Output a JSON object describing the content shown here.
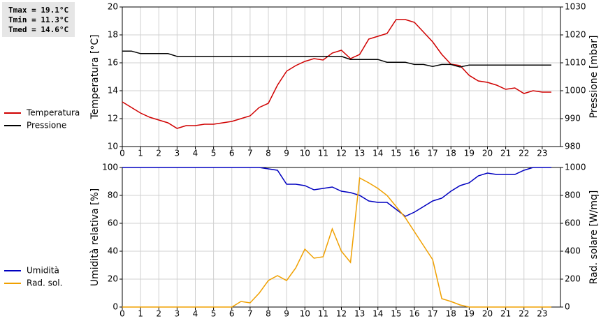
{
  "chart_data": [
    {
      "type": "line",
      "annotations": [
        "Tmax = 19.1°C",
        "Tmin = 11.3°C",
        "Tmed = 14.6°C"
      ],
      "y_label": "Temperatura [°C]",
      "y2_label": "Pressione [mbar]",
      "x": [
        0,
        0.5,
        1,
        1.5,
        2,
        2.5,
        3,
        3.5,
        4,
        4.5,
        5,
        5.5,
        6,
        6.5,
        7,
        7.5,
        8,
        8.5,
        9,
        9.5,
        10,
        10.5,
        11,
        11.5,
        12,
        12.5,
        13,
        13.5,
        14,
        14.5,
        15,
        15.5,
        16,
        16.5,
        17,
        17.5,
        18,
        18.5,
        19,
        19.5,
        20,
        20.5,
        21,
        21.5,
        22,
        22.5,
        23,
        23.5
      ],
      "xlim": [
        0,
        24
      ],
      "xticks": [
        0,
        1,
        2,
        3,
        4,
        5,
        6,
        7,
        8,
        9,
        10,
        11,
        12,
        13,
        14,
        15,
        16,
        17,
        18,
        19,
        20,
        21,
        22,
        23
      ],
      "ylim": [
        10,
        20
      ],
      "yticks": [
        10,
        12,
        14,
        16,
        18,
        20
      ],
      "y2lim": [
        980,
        1030
      ],
      "y2ticks": [
        980,
        990,
        1000,
        1010,
        1020,
        1030
      ],
      "grid": true,
      "series": [
        {
          "name": "Temperatura",
          "color": "#d00000",
          "axis": "y",
          "values": [
            13.2,
            12.8,
            12.4,
            12.1,
            11.9,
            11.7,
            11.3,
            11.5,
            11.5,
            11.6,
            11.6,
            11.7,
            11.8,
            12.0,
            12.2,
            12.8,
            13.1,
            14.4,
            15.4,
            15.8,
            16.1,
            16.3,
            16.2,
            16.7,
            16.9,
            16.3,
            16.6,
            17.7,
            17.9,
            18.1,
            19.1,
            19.1,
            18.9,
            18.2,
            17.5,
            16.6,
            15.9,
            15.8,
            15.1,
            14.7,
            14.6,
            14.4,
            14.1,
            14.2,
            13.8,
            14.0,
            13.9,
            13.9
          ]
        },
        {
          "name": "Pressione",
          "color": "#000000",
          "axis": "y2",
          "values": [
            1014.2,
            1014.2,
            1013.3,
            1013.3,
            1013.3,
            1013.3,
            1012.3,
            1012.3,
            1012.3,
            1012.3,
            1012.3,
            1012.3,
            1012.3,
            1012.3,
            1012.3,
            1012.3,
            1012.3,
            1012.3,
            1012.3,
            1012.3,
            1012.3,
            1012.3,
            1012.3,
            1012.3,
            1012.3,
            1011.2,
            1011.2,
            1011.2,
            1011.2,
            1010.2,
            1010.2,
            1010.2,
            1009.4,
            1009.4,
            1008.7,
            1009.4,
            1009.4,
            1008.5,
            1009.2,
            1009.2,
            1009.2,
            1009.2,
            1009.2,
            1009.2,
            1009.2,
            1009.2,
            1009.2,
            1009.2
          ]
        }
      ]
    },
    {
      "type": "line",
      "y_label": "Umidità relativa [%]",
      "y2_label": "Rad. solare [W/mq]",
      "x": [
        0,
        0.5,
        1,
        1.5,
        2,
        2.5,
        3,
        3.5,
        4,
        4.5,
        5,
        5.5,
        6,
        6.5,
        7,
        7.5,
        8,
        8.5,
        9,
        9.5,
        10,
        10.5,
        11,
        11.5,
        12,
        12.5,
        13,
        13.5,
        14,
        14.5,
        15,
        15.5,
        16,
        16.5,
        17,
        17.5,
        18,
        18.5,
        19,
        19.5,
        20,
        20.5,
        21,
        21.5,
        22,
        22.5,
        23,
        23.5
      ],
      "xlim": [
        0,
        24
      ],
      "xticks": [
        0,
        1,
        2,
        3,
        4,
        5,
        6,
        7,
        8,
        9,
        10,
        11,
        12,
        13,
        14,
        15,
        16,
        17,
        18,
        19,
        20,
        21,
        22,
        23
      ],
      "ylim": [
        0,
        100
      ],
      "yticks": [
        0,
        20,
        40,
        60,
        80,
        100
      ],
      "y2lim": [
        0,
        1000
      ],
      "y2ticks": [
        0,
        200,
        400,
        600,
        800,
        1000
      ],
      "grid": true,
      "series": [
        {
          "name": "Umidità",
          "color": "#0000c0",
          "axis": "y",
          "values": [
            100,
            100,
            100,
            100,
            100,
            100,
            100,
            100,
            100,
            100,
            100,
            100,
            100,
            100,
            100,
            100,
            99,
            98,
            88,
            88,
            87,
            84,
            85,
            86,
            83,
            82,
            80,
            76,
            75,
            75,
            70,
            65,
            68,
            72,
            76,
            78,
            83,
            87,
            89,
            94,
            96,
            95,
            95,
            95,
            98,
            100,
            100,
            100
          ]
        },
        {
          "name": "Rad. sol.",
          "color": "#f0a000",
          "axis": "y2",
          "values": [
            0,
            0,
            0,
            0,
            0,
            0,
            0,
            0,
            0,
            0,
            0,
            0,
            0,
            40,
            30,
            100,
            190,
            225,
            190,
            280,
            415,
            350,
            360,
            560,
            400,
            320,
            925,
            890,
            850,
            800,
            720,
            640,
            540,
            440,
            340,
            60,
            40,
            15,
            0,
            0,
            0,
            0,
            0,
            0,
            0,
            0,
            0,
            0
          ]
        }
      ]
    }
  ]
}
